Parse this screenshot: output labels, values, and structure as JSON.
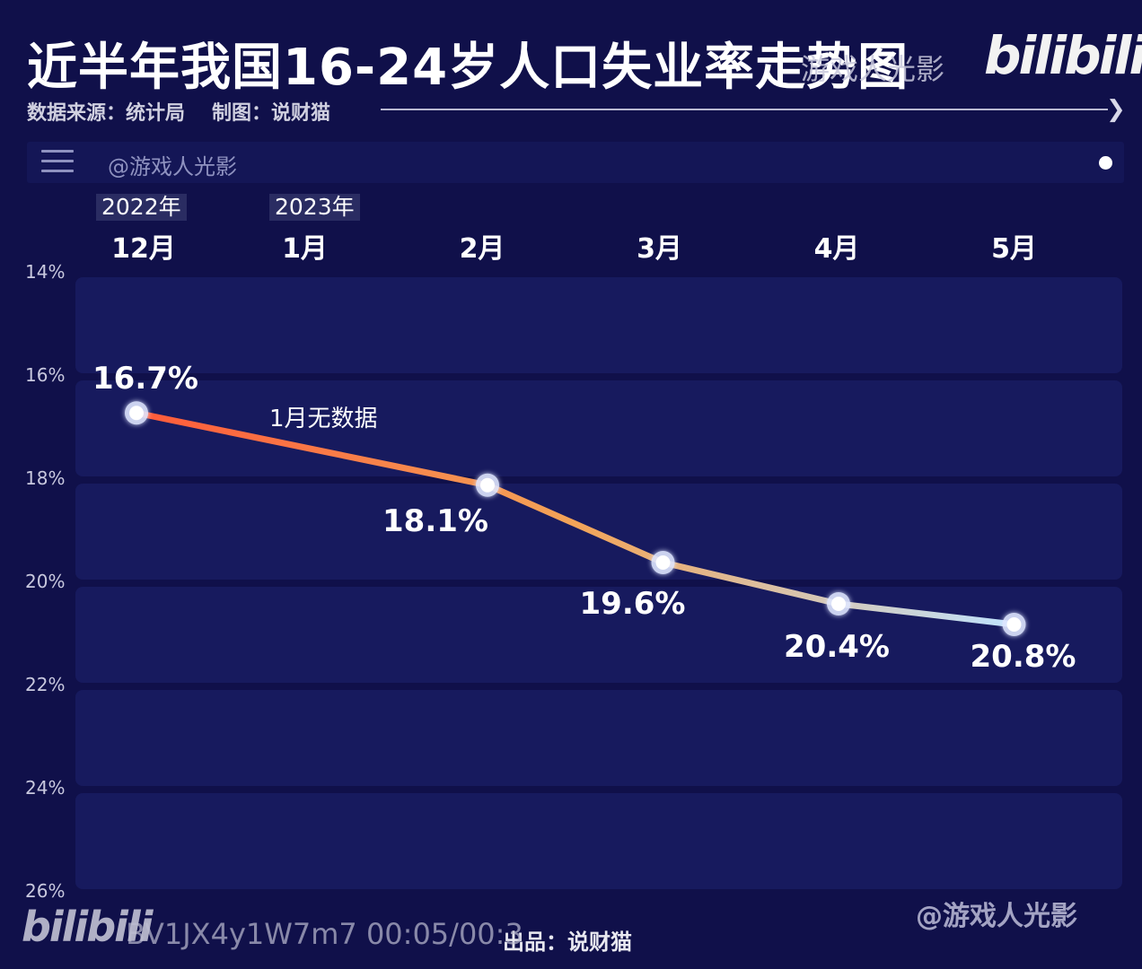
{
  "header": {
    "title": "近半年我国16-24岁人口失业率走势图",
    "title_overlay": "游戏人光影",
    "logo_text": "bilibili",
    "source_label": "数据来源：统计局",
    "maker_label": "制图：说财猫"
  },
  "toolbar": {
    "handle": "@游戏人光影",
    "menu_icon": "hamburger-menu-icon"
  },
  "footer": {
    "watermark_handle": "@游戏人光影",
    "credit": "出品：说财猫",
    "logo_text": "bilibili",
    "video_id": "BV1JX4y1W7m7 00:05/00:3"
  },
  "colors": {
    "background": "#10104a",
    "band": "#171a5e",
    "line_start": "#ff5a3a",
    "line_mid": "#f2a458",
    "line_end": "#bfe3ff"
  },
  "chart_data": {
    "type": "line",
    "title": "近半年我国16-24岁人口失业率走势图",
    "year_labels": [
      {
        "label": "2022年",
        "category_index": 0
      },
      {
        "label": "2023年",
        "category_index": 1
      }
    ],
    "categories": [
      "12月",
      "1月",
      "2月",
      "3月",
      "4月",
      "5月"
    ],
    "y_ticks": [
      "14%",
      "16%",
      "18%",
      "20%",
      "22%",
      "24%",
      "26%"
    ],
    "ylim": [
      14,
      26
    ],
    "y_inverted": true,
    "grid": true,
    "series": [
      {
        "values": [
          16.7,
          null,
          18.1,
          19.6,
          20.4,
          20.8
        ],
        "labels": [
          "16.7%",
          "",
          "18.1%",
          "19.6%",
          "20.4%",
          "20.8%"
        ]
      }
    ],
    "annotations": [
      {
        "text": "1月无数据",
        "category_index": 1
      }
    ]
  }
}
